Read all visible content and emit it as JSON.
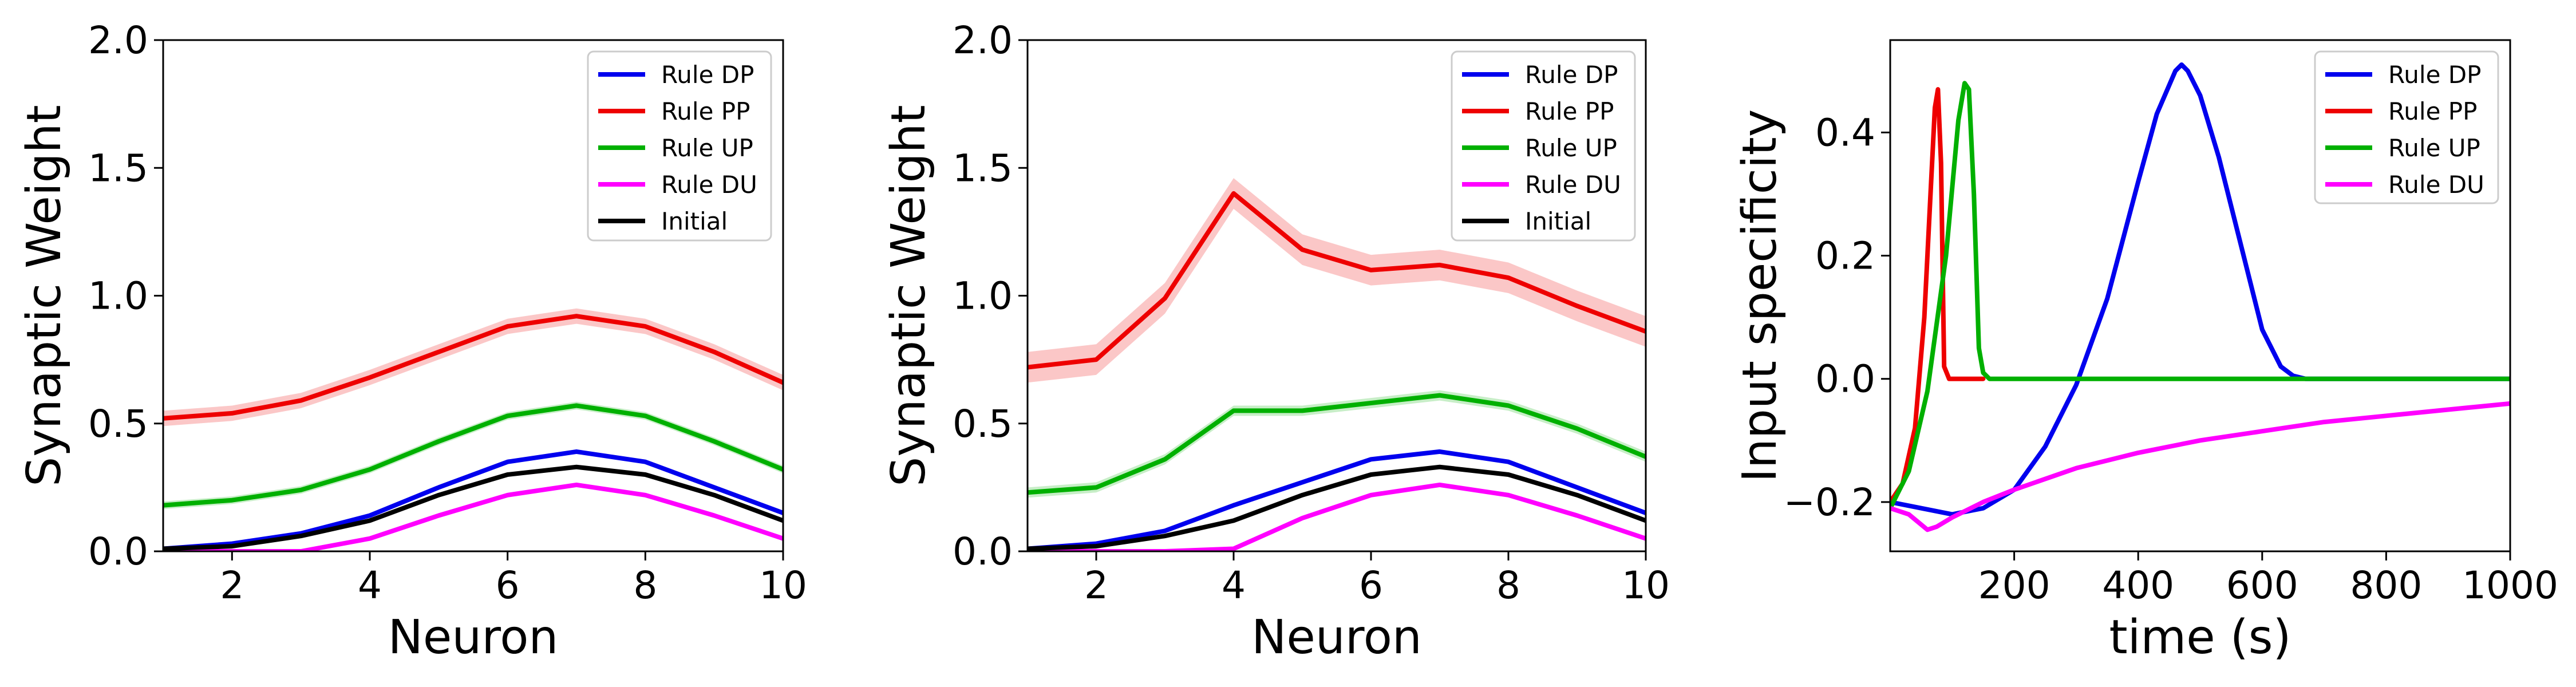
{
  "colors": {
    "Rule DP": "#0000ee",
    "Rule PP": "#ee0000",
    "Rule UP": "#00b000",
    "Rule DU": "#ff00ff",
    "Initial": "#000000"
  },
  "chart_data": [
    {
      "type": "line",
      "xlabel": "Neuron",
      "ylabel": "Synaptic Weight",
      "xlim": [
        1,
        10
      ],
      "ylim": [
        0,
        2
      ],
      "xticks": [
        "2",
        "4",
        "6",
        "8",
        "10"
      ],
      "yticks": [
        "0.0",
        "0.5",
        "1.0",
        "1.5",
        "2.0"
      ],
      "legend_position": "top-right",
      "x": [
        1,
        2,
        3,
        4,
        5,
        6,
        7,
        8,
        9,
        10
      ],
      "series": [
        {
          "name": "Rule DP",
          "values": [
            0.01,
            0.03,
            0.07,
            0.14,
            0.25,
            0.35,
            0.39,
            0.35,
            0.25,
            0.15
          ]
        },
        {
          "name": "Rule PP",
          "values": [
            0.52,
            0.54,
            0.59,
            0.68,
            0.78,
            0.88,
            0.92,
            0.88,
            0.78,
            0.66
          ],
          "band": 0.03
        },
        {
          "name": "Rule UP",
          "values": [
            0.18,
            0.2,
            0.24,
            0.32,
            0.43,
            0.53,
            0.57,
            0.53,
            0.43,
            0.32
          ],
          "band": 0.015
        },
        {
          "name": "Rule DU",
          "values": [
            0.0,
            0.0,
            0.0,
            0.05,
            0.14,
            0.22,
            0.26,
            0.22,
            0.14,
            0.05
          ]
        },
        {
          "name": "Initial",
          "values": [
            0.01,
            0.02,
            0.06,
            0.12,
            0.22,
            0.3,
            0.33,
            0.3,
            0.22,
            0.12
          ]
        }
      ]
    },
    {
      "type": "line",
      "xlabel": "Neuron",
      "ylabel": "Synaptic Weight",
      "xlim": [
        1,
        10
      ],
      "ylim": [
        0,
        2
      ],
      "xticks": [
        "2",
        "4",
        "6",
        "8",
        "10"
      ],
      "yticks": [
        "0.0",
        "0.5",
        "1.0",
        "1.5",
        "2.0"
      ],
      "legend_position": "top-right",
      "x": [
        1,
        2,
        3,
        4,
        5,
        6,
        7,
        8,
        9,
        10
      ],
      "series": [
        {
          "name": "Rule DP",
          "values": [
            0.01,
            0.03,
            0.08,
            0.18,
            0.27,
            0.36,
            0.39,
            0.35,
            0.25,
            0.15
          ]
        },
        {
          "name": "Rule PP",
          "values": [
            0.72,
            0.75,
            0.99,
            1.4,
            1.18,
            1.1,
            1.12,
            1.07,
            0.96,
            0.86
          ],
          "band": 0.06
        },
        {
          "name": "Rule UP",
          "values": [
            0.23,
            0.25,
            0.36,
            0.55,
            0.55,
            0.58,
            0.61,
            0.57,
            0.48,
            0.37
          ],
          "band": 0.02
        },
        {
          "name": "Rule DU",
          "values": [
            0.0,
            0.0,
            0.0,
            0.01,
            0.13,
            0.22,
            0.26,
            0.22,
            0.14,
            0.05
          ]
        },
        {
          "name": "Initial",
          "values": [
            0.01,
            0.02,
            0.06,
            0.12,
            0.22,
            0.3,
            0.33,
            0.3,
            0.22,
            0.12
          ]
        }
      ]
    },
    {
      "type": "line",
      "xlabel": "time (s)",
      "ylabel": "Input specificity",
      "xlim": [
        0,
        1000
      ],
      "ylim": [
        -0.28,
        0.55
      ],
      "xticks": [
        "200",
        "400",
        "600",
        "800",
        "1000"
      ],
      "yticks": [
        "−0.2",
        "0.0",
        "0.2",
        "0.4"
      ],
      "legend_position": "top-right",
      "series": [
        {
          "name": "Rule DP",
          "x": [
            0,
            50,
            100,
            150,
            200,
            250,
            300,
            350,
            400,
            430,
            460,
            470,
            480,
            500,
            530,
            560,
            600,
            630,
            650,
            670,
            700,
            800,
            1000
          ],
          "values": [
            -0.2,
            -0.21,
            -0.22,
            -0.21,
            -0.18,
            -0.11,
            -0.01,
            0.13,
            0.32,
            0.43,
            0.5,
            0.51,
            0.5,
            0.46,
            0.36,
            0.24,
            0.08,
            0.02,
            0.005,
            0.0,
            0.0,
            0.0,
            0.0
          ]
        },
        {
          "name": "Rule PP",
          "x": [
            0,
            20,
            40,
            55,
            65,
            72,
            77,
            82,
            87,
            95,
            110,
            150
          ],
          "values": [
            -0.2,
            -0.17,
            -0.08,
            0.1,
            0.3,
            0.44,
            0.47,
            0.35,
            0.02,
            0.0,
            0.0,
            0.0
          ]
        },
        {
          "name": "Rule UP",
          "x": [
            0,
            30,
            60,
            90,
            110,
            120,
            127,
            135,
            143,
            150,
            160,
            200,
            1000
          ],
          "values": [
            -0.21,
            -0.15,
            -0.02,
            0.2,
            0.42,
            0.48,
            0.47,
            0.3,
            0.05,
            0.01,
            0.0,
            0.0,
            0.0
          ]
        },
        {
          "name": "Rule DU",
          "x": [
            0,
            30,
            60,
            75,
            100,
            150,
            200,
            300,
            400,
            500,
            600,
            700,
            800,
            900,
            1000
          ],
          "values": [
            -0.21,
            -0.22,
            -0.245,
            -0.24,
            -0.225,
            -0.2,
            -0.18,
            -0.145,
            -0.12,
            -0.1,
            -0.085,
            -0.07,
            -0.06,
            -0.05,
            -0.04
          ]
        }
      ]
    }
  ]
}
